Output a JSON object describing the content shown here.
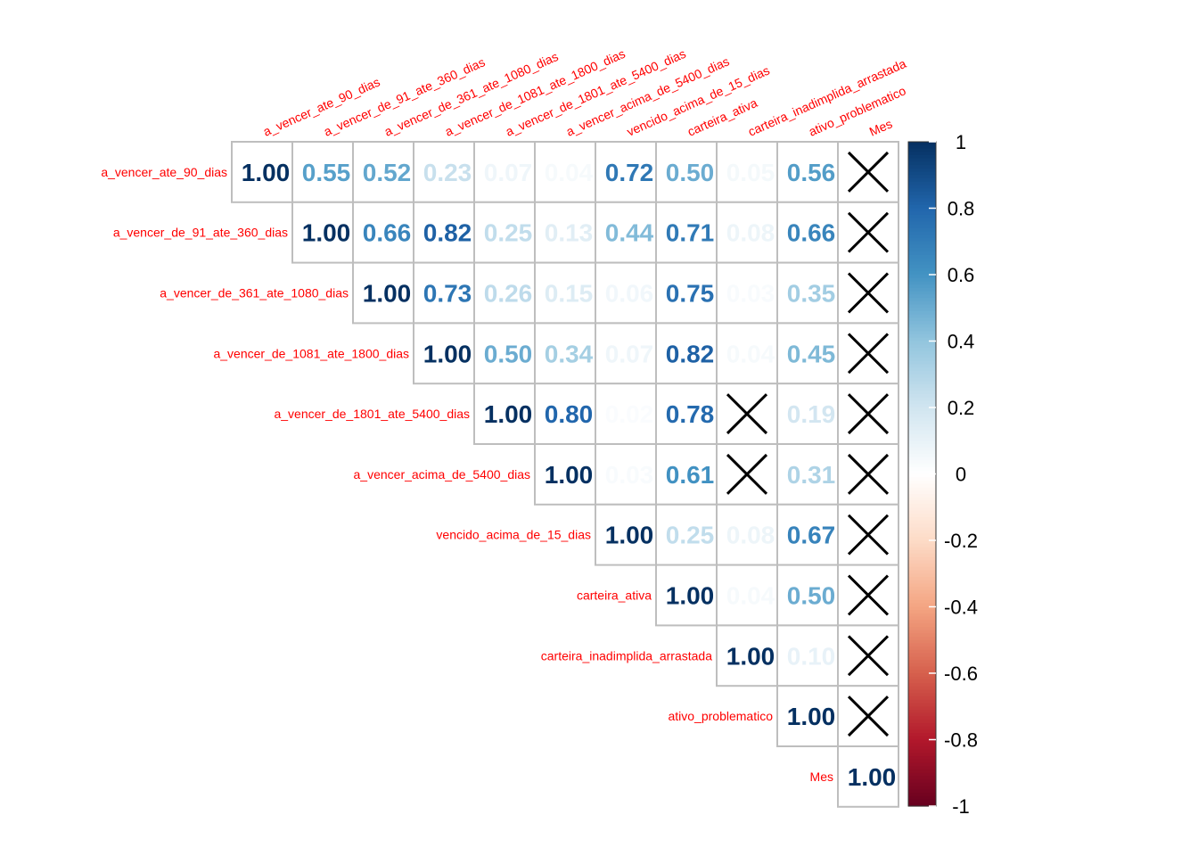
{
  "chart_data": {
    "type": "heatmap",
    "subtype": "correlation-matrix-upper",
    "variables": [
      "a_vencer_ate_90_dias",
      "a_vencer_de_91_ate_360_dias",
      "a_vencer_de_361_ate_1080_dias",
      "a_vencer_de_1081_ate_1800_dias",
      "a_vencer_de_1801_ate_5400_dias",
      "a_vencer_acima_de_5400_dias",
      "vencido_acima_de_15_dias",
      "carteira_ativa",
      "carteira_inadimplida_arrastada",
      "ativo_problematico",
      "Mes"
    ],
    "matrix": [
      [
        1.0,
        0.55,
        0.52,
        0.23,
        0.07,
        0.04,
        0.72,
        0.5,
        0.05,
        0.56,
        null
      ],
      [
        null,
        1.0,
        0.66,
        0.82,
        0.25,
        0.13,
        0.44,
        0.71,
        0.08,
        0.66,
        null
      ],
      [
        null,
        null,
        1.0,
        0.73,
        0.26,
        0.15,
        0.06,
        0.75,
        0.03,
        0.35,
        null
      ],
      [
        null,
        null,
        null,
        1.0,
        0.5,
        0.34,
        0.07,
        0.82,
        0.04,
        0.45,
        null
      ],
      [
        null,
        null,
        null,
        null,
        1.0,
        0.8,
        0.02,
        0.78,
        null,
        0.19,
        null
      ],
      [
        null,
        null,
        null,
        null,
        null,
        1.0,
        0.03,
        0.61,
        null,
        0.31,
        null
      ],
      [
        null,
        null,
        null,
        null,
        null,
        null,
        1.0,
        0.25,
        0.08,
        0.67,
        null
      ],
      [
        null,
        null,
        null,
        null,
        null,
        null,
        null,
        1.0,
        0.04,
        0.5,
        null
      ],
      [
        null,
        null,
        null,
        null,
        null,
        null,
        null,
        null,
        1.0,
        0.1,
        null
      ],
      [
        null,
        null,
        null,
        null,
        null,
        null,
        null,
        null,
        null,
        1.0,
        null
      ],
      [
        null,
        null,
        null,
        null,
        null,
        null,
        null,
        null,
        null,
        null,
        1.0
      ]
    ],
    "insignificant_marker": "X",
    "number_format": "2 decimals",
    "colorbar": {
      "range": [
        -1,
        1
      ],
      "ticks": [
        "1",
        "0.8",
        "0.6",
        "0.4",
        "0.2",
        "0",
        "-0.2",
        "-0.4",
        "-0.6",
        "-0.8",
        "-1"
      ],
      "colors": [
        "#67001F",
        "#B2182B",
        "#D6604D",
        "#F4A582",
        "#FDDBC7",
        "#FFFFFF",
        "#D1E5F0",
        "#92C5DE",
        "#4393C3",
        "#2166AC",
        "#053061"
      ]
    },
    "label_color": "#FF0000",
    "grid_color": "#BEBEBE"
  }
}
